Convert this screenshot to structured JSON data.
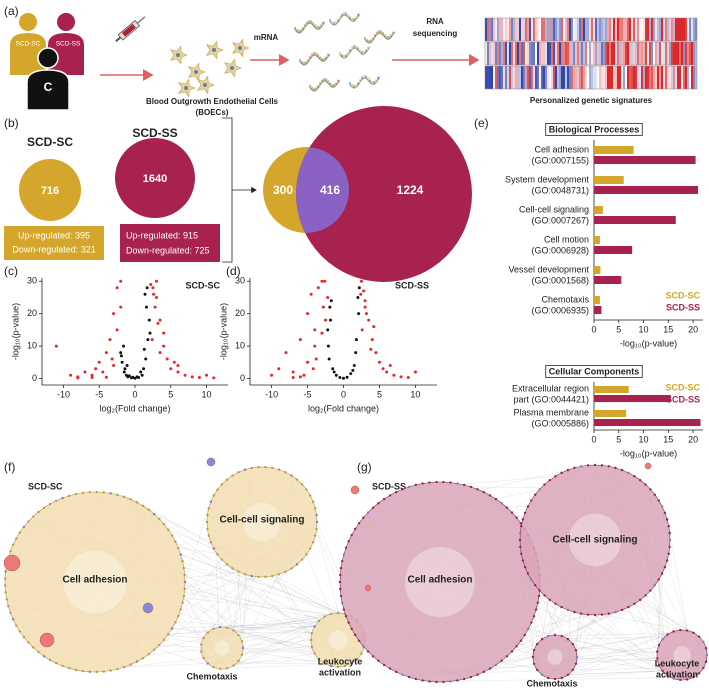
{
  "panel_labels": [
    "(a)",
    "(b)",
    "(c)",
    "(d)",
    "(e)",
    "(f)",
    "(g)"
  ],
  "schematic": {
    "donors": [
      "SCD-SC",
      "SCD-SS",
      "C"
    ],
    "cells_label": [
      "Blood Outgrowth Endothelial Cells",
      "(BOECs)"
    ],
    "step1": "mRNA",
    "step2": [
      "RNA",
      "sequencing"
    ],
    "result": "Personalized genetic signatures"
  },
  "deg_counts": [
    {
      "name": "SCD-SC",
      "total": 716,
      "up": "Up-regulated: 395",
      "down": "Down-regulated: 321"
    },
    {
      "name": "SCD-SS",
      "total": 1640,
      "up": "Up-regulated: 915",
      "down": "Down-regulated: 725"
    }
  ],
  "venn": {
    "only_sc": 300,
    "shared": 416,
    "only_ss": 1224
  },
  "chart_data": [
    {
      "type": "scatter",
      "title": "SCD-SC",
      "xlabel": "log₂(Fold change)",
      "ylabel": "-log₁₀(p-value)",
      "xlim": [
        -13,
        13
      ],
      "ylim": [
        -2,
        31
      ],
      "xticks": [
        -10,
        -5,
        0,
        5,
        10
      ],
      "yticks": [
        0,
        10,
        20,
        30
      ],
      "series": [
        {
          "color": "#e8262b",
          "x": [
            -11,
            -9,
            -8,
            -7,
            -6,
            -5.5,
            -5,
            -4.5,
            -4,
            -3.5,
            -3,
            -2.5,
            -2,
            -6,
            -4,
            -3,
            -2.5,
            -2,
            -8,
            -3.2,
            3,
            3.5,
            4,
            4.5,
            5,
            6,
            7,
            8,
            9,
            10,
            11,
            2.5,
            3,
            2.2,
            2.8,
            4,
            5.5,
            3.5,
            2.4,
            6,
            2.6,
            3.2
          ],
          "values": [
            10,
            1,
            0.5,
            2,
            1,
            3,
            5,
            2,
            8,
            12,
            20,
            28,
            30,
            0.3,
            0.4,
            4,
            15,
            22,
            0.2,
            6,
            25,
            18,
            10,
            6,
            3,
            2,
            1,
            0.5,
            0.3,
            1,
            0.2,
            28,
            30,
            29,
            22,
            14,
            5,
            8,
            12,
            4,
            26,
            17
          ]
        },
        {
          "color": "#111111",
          "x": [
            -1.5,
            -1.8,
            -2,
            -1.2,
            -1,
            -0.5,
            0,
            0.5,
            1,
            1.2,
            1.5,
            1.8,
            2,
            -1.6,
            1.6,
            -1.4,
            1.4,
            -0.8,
            0.8,
            1.7,
            2.1,
            -1.9,
            1.3,
            -1.1,
            0.3,
            -0.3
          ],
          "values": [
            2,
            5,
            8,
            1,
            0.5,
            0.2,
            0.1,
            0.3,
            1,
            3,
            6,
            12,
            18,
            10,
            22,
            3,
            26,
            0.8,
            2,
            28,
            14,
            7,
            9,
            4,
            0.5,
            0.4
          ]
        }
      ]
    },
    {
      "type": "scatter",
      "title": "SCD-SS",
      "xlabel": "log₂(Fold change)",
      "ylabel": "-log₁₀(p-value)",
      "xlim": [
        -13,
        13
      ],
      "ylim": [
        -2,
        31
      ],
      "xticks": [
        -10,
        -5,
        0,
        5,
        10
      ],
      "yticks": [
        0,
        10,
        20,
        30
      ],
      "series": [
        {
          "color": "#e8262b",
          "x": [
            -10,
            -9,
            -8,
            -7,
            -6,
            -5,
            -4.5,
            -4,
            -3.5,
            -3,
            -2.8,
            -2.5,
            -2.2,
            -5,
            -6,
            -4,
            -3,
            -7,
            -3.8,
            -2.6,
            -4.2,
            -5.5,
            2.5,
            2.8,
            3,
            3.5,
            4,
            4.5,
            5,
            5.5,
            6,
            7,
            8,
            9,
            10,
            3.2,
            2.6,
            4.2,
            3.8,
            6.5,
            2.4,
            3
          ],
          "values": [
            1,
            3,
            8,
            2,
            12,
            20,
            26,
            15,
            28,
            30,
            22,
            18,
            25,
            5,
            0.5,
            10,
            14,
            0.3,
            6,
            30,
            3,
            1,
            30,
            27,
            24,
            18,
            12,
            8,
            5,
            3,
            2,
            1,
            0.5,
            0.3,
            2,
            20,
            15,
            16,
            9,
            4,
            26,
            22
          ]
        },
        {
          "color": "#111111",
          "x": [
            -2,
            -1.8,
            -1.5,
            -1,
            -0.5,
            0,
            0.5,
            1,
            1.5,
            1.8,
            2,
            -2.1,
            2.1,
            -1.7,
            1.7,
            -1.3,
            1.3,
            -2.2,
            2.2,
            -1.9
          ],
          "values": [
            6,
            18,
            3,
            1,
            0.3,
            0.1,
            0.4,
            1.5,
            4,
            12,
            25,
            10,
            20,
            24,
            8,
            2,
            2.5,
            15,
            28,
            22
          ]
        }
      ]
    },
    {
      "type": "bar",
      "title": "Biological Processes",
      "xlabel": "-log₁₀(p-value)",
      "categories": [
        [
          "Cell adhesion",
          "(GO:0007155)"
        ],
        [
          "System development",
          "(GO:0048731)"
        ],
        [
          "Cell-cell signaling",
          "(GO:0007267)"
        ],
        [
          "Cell motion",
          "(GO:0006928)"
        ],
        [
          "Vessel development",
          "(GO:0001568)"
        ],
        [
          "Chemotaxis",
          "(GO:0006935)"
        ]
      ],
      "series": [
        {
          "name": "SCD-SC",
          "color": "#d4a72c",
          "values": [
            8,
            6,
            1.8,
            1.2,
            1.3,
            1.2
          ]
        },
        {
          "name": "SCD-SS",
          "color": "#a8224f",
          "values": [
            20.5,
            21,
            16.5,
            7.7,
            5.5,
            1.5
          ]
        }
      ],
      "xlim": [
        0,
        22
      ],
      "xticks": [
        0,
        5,
        10,
        15,
        20
      ],
      "legend": "lower right"
    },
    {
      "type": "bar",
      "title": "Cellular Components",
      "xlabel": "-log₁₀(p-value)",
      "categories": [
        [
          "Extracellular region",
          "part (GO:0044421)"
        ],
        [
          "Plasma membrane",
          "(GO:0005886)"
        ]
      ],
      "series": [
        {
          "name": "SCD-SC",
          "color": "#d4a72c",
          "values": [
            7,
            6.5
          ]
        },
        {
          "name": "SCD-SS",
          "color": "#a8224f",
          "values": [
            15.5,
            21.5
          ]
        }
      ],
      "xlim": [
        0,
        22
      ],
      "xticks": [
        0,
        5,
        10,
        15,
        20
      ],
      "legend": "upper right"
    }
  ],
  "networks": [
    {
      "title": "SCD-SC",
      "clusters": [
        [
          "Cell adhesion"
        ],
        [
          "Cell-cell signaling"
        ],
        [
          "Chemotaxis"
        ],
        [
          "Leukocyte",
          "activation"
        ]
      ]
    },
    {
      "title": "SCD-SS",
      "clusters": [
        [
          "Cell adhesion"
        ],
        [
          "Cell-cell signaling"
        ],
        [
          "Chemotaxis"
        ],
        [
          "Leukocyte",
          "activation"
        ]
      ]
    }
  ]
}
